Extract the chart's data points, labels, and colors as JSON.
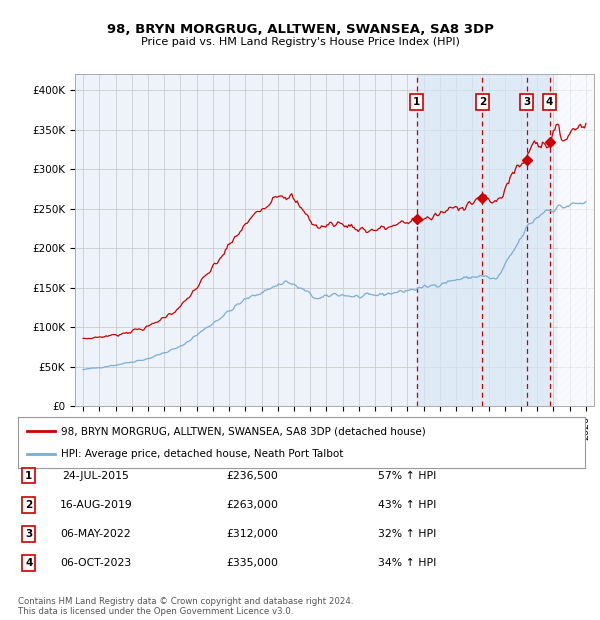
{
  "title": "98, BRYN MORGRUG, ALLTWEN, SWANSEA, SA8 3DP",
  "subtitle": "Price paid vs. HM Land Registry's House Price Index (HPI)",
  "red_label": "98, BRYN MORGRUG, ALLTWEN, SWANSEA, SA8 3DP (detached house)",
  "blue_label": "HPI: Average price, detached house, Neath Port Talbot",
  "footer1": "Contains HM Land Registry data © Crown copyright and database right 2024.",
  "footer2": "This data is licensed under the Open Government Licence v3.0.",
  "sales": [
    {
      "num": 1,
      "date": "24-JUL-2015",
      "price": 236500,
      "pct": "57%",
      "dir": "↑"
    },
    {
      "num": 2,
      "date": "16-AUG-2019",
      "price": 263000,
      "pct": "43%",
      "dir": "↑"
    },
    {
      "num": 3,
      "date": "06-MAY-2022",
      "price": 312000,
      "pct": "32%",
      "dir": "↑"
    },
    {
      "num": 4,
      "date": "06-OCT-2023",
      "price": 335000,
      "pct": "34%",
      "dir": "↑"
    }
  ],
  "sale_dates_decimal": [
    2015.558,
    2019.622,
    2022.347,
    2023.764
  ],
  "sale_prices": [
    236500,
    263000,
    312000,
    335000
  ],
  "ylim": [
    0,
    420000
  ],
  "xlim_start": 1994.5,
  "xlim_end": 2026.5,
  "yticks": [
    0,
    50000,
    100000,
    150000,
    200000,
    250000,
    300000,
    350000,
    400000
  ],
  "ytick_labels": [
    "£0",
    "£50K",
    "£100K",
    "£150K",
    "£200K",
    "£250K",
    "£300K",
    "£350K",
    "£400K"
  ],
  "bg_color": "#eef2fb",
  "grid_color": "#cccccc",
  "red_color": "#cc0000",
  "blue_color": "#7aaed6",
  "sale_vline_color": "#cc0000",
  "shade_color": "#d8e8f5",
  "hatch_color": "#aabbcc"
}
